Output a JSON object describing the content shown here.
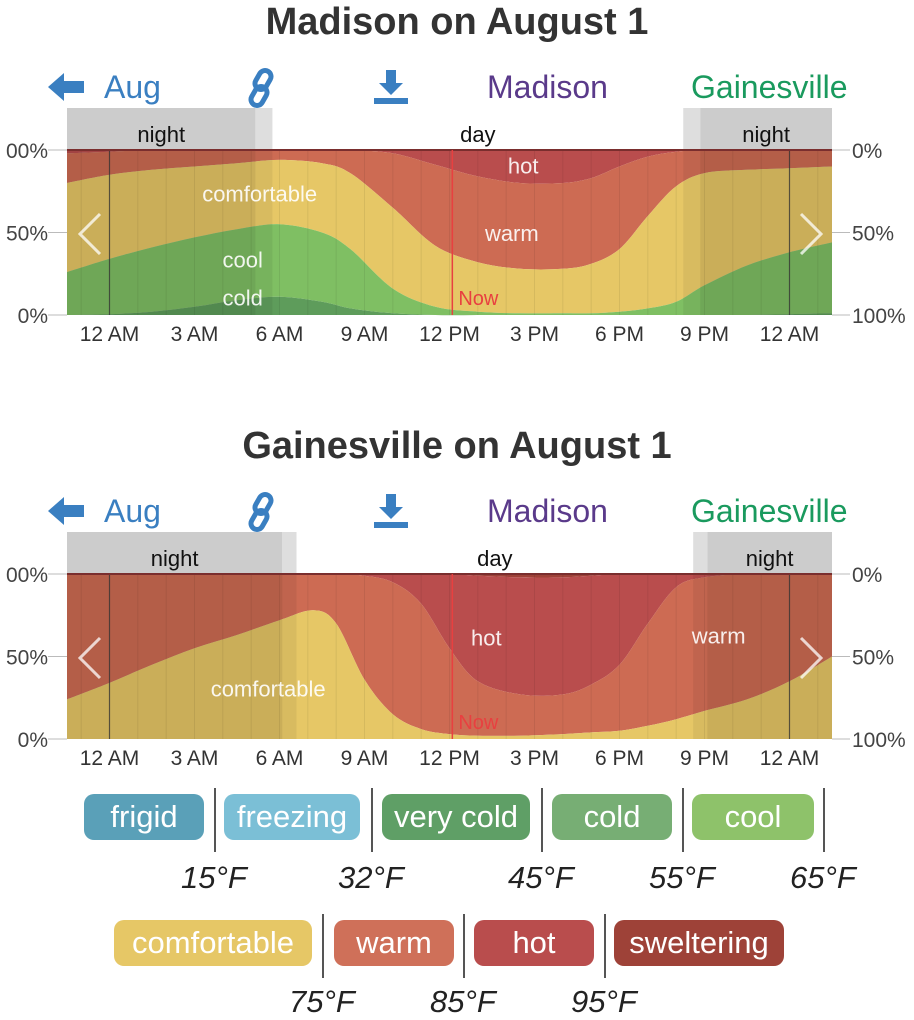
{
  "panels": [
    {
      "title": "Madison on August 1",
      "nav": {
        "back_label": "Aug",
        "city1": "Madison",
        "city2": "Gainesville"
      },
      "bands": {
        "night_left": "night",
        "day": "day",
        "night_right": "night"
      },
      "axis": {
        "left_ticks": [
          "00%",
          "50%",
          "0%"
        ],
        "right_ticks": [
          "0%",
          "50%",
          "100%"
        ],
        "x_ticks": [
          "12 AM",
          "3 AM",
          "6 AM",
          "9 AM",
          "12 PM",
          "3 PM",
          "6 PM",
          "9 PM",
          "12 AM"
        ]
      },
      "now_label": "Now",
      "area_labels": [
        {
          "text": "hot",
          "x_hours": 14.6,
          "y_pct": 90
        },
        {
          "text": "comfortable",
          "x_hours": 5.3,
          "y_pct": 73
        },
        {
          "text": "warm",
          "x_hours": 14.2,
          "y_pct": 49
        },
        {
          "text": "cool",
          "x_hours": 4.7,
          "y_pct": 33
        },
        {
          "text": "cold",
          "x_hours": 4.7,
          "y_pct": 10
        }
      ]
    },
    {
      "title": "Gainesville on August 1",
      "nav": {
        "back_label": "Aug",
        "city1": "Madison",
        "city2": "Gainesville"
      },
      "bands": {
        "night_left": "night",
        "day": "day",
        "night_right": "night"
      },
      "axis": {
        "left_ticks": [
          "00%",
          "50%",
          "0%"
        ],
        "right_ticks": [
          "0%",
          "50%",
          "100%"
        ],
        "x_ticks": [
          "12 AM",
          "3 AM",
          "6 AM",
          "9 AM",
          "12 PM",
          "3 PM",
          "6 PM",
          "9 PM",
          "12 AM"
        ]
      },
      "now_label": "Now",
      "area_labels": [
        {
          "text": "hot",
          "x_hours": 13.3,
          "y_pct": 61
        },
        {
          "text": "warm",
          "x_hours": 21.5,
          "y_pct": 62
        },
        {
          "text": "comfortable",
          "x_hours": 5.6,
          "y_pct": 30
        }
      ]
    }
  ],
  "chart_data": [
    {
      "type": "area",
      "title": "Madison on August 1",
      "x_unit": "hour of day (0 = 12 AM)",
      "x": [
        -1.5,
        0,
        1.5,
        3,
        4.5,
        6,
        7.5,
        8.5,
        10,
        11.5,
        13,
        14.5,
        16,
        17,
        18,
        19,
        20,
        21,
        22.5,
        24,
        25.5
      ],
      "ylim": [
        0,
        100
      ],
      "series": [
        {
          "name": "cold",
          "values": [
            0,
            0.5,
            2,
            5,
            9,
            11,
            8,
            4,
            1,
            0,
            0,
            0,
            0,
            0,
            0,
            0,
            0,
            0,
            0,
            0.5,
            1
          ]
        },
        {
          "name": "cool",
          "values": [
            26,
            34,
            41,
            47,
            52,
            55,
            50,
            40,
            16,
            5,
            2,
            1,
            1,
            1,
            2,
            4,
            8,
            18,
            30,
            38,
            44
          ]
        },
        {
          "name": "comfortable",
          "values": [
            80,
            85,
            88,
            90,
            92,
            94,
            92,
            86,
            65,
            42,
            32,
            28,
            28,
            31,
            40,
            60,
            78,
            86,
            88,
            89,
            90
          ]
        },
        {
          "name": "warm",
          "values": [
            98,
            99,
            100,
            100,
            100,
            100,
            100,
            100,
            98,
            91,
            84,
            80,
            80,
            83,
            90,
            96,
            99,
            100,
            100,
            100,
            100
          ]
        },
        {
          "name": "hot",
          "values": [
            100,
            100,
            100,
            100,
            100,
            100,
            100,
            100,
            100,
            100,
            100,
            100,
            100,
            100,
            100,
            100,
            100,
            100,
            100,
            100,
            100
          ]
        }
      ],
      "now_hour": 12.1,
      "day_start_hour": 5.75,
      "day_end_hour": 20.25,
      "twilight_hours": 0.6
    },
    {
      "type": "area",
      "title": "Gainesville on August 1",
      "x_unit": "hour of day (0 = 12 AM)",
      "x": [
        -1.5,
        0,
        1.5,
        3,
        4.5,
        6,
        7.2,
        8,
        9,
        10,
        11,
        12,
        13,
        14.5,
        16,
        17,
        18,
        19,
        20,
        21,
        22.5,
        24,
        25.5
      ],
      "ylim": [
        0,
        100
      ],
      "series": [
        {
          "name": "comfortable",
          "values": [
            24,
            34,
            45,
            55,
            63,
            72,
            78,
            70,
            36,
            15,
            6,
            3,
            2,
            2,
            3,
            4,
            5,
            8,
            12,
            17,
            24,
            35,
            50
          ]
        },
        {
          "name": "warm",
          "values": [
            100,
            100,
            100,
            100,
            100,
            100,
            100,
            100,
            99,
            95,
            82,
            55,
            35,
            27,
            27,
            33,
            45,
            70,
            92,
            98,
            100,
            100,
            100
          ]
        },
        {
          "name": "hot",
          "values": [
            100,
            100,
            100,
            100,
            100,
            100,
            100,
            100,
            100,
            100,
            100,
            100,
            99,
            98,
            98,
            99,
            100,
            100,
            100,
            100,
            100,
            100,
            100
          ]
        },
        {
          "name": "sweltering",
          "values": [
            100,
            100,
            100,
            100,
            100,
            100,
            100,
            100,
            100,
            100,
            100,
            100,
            100,
            100,
            100,
            100,
            100,
            100,
            100,
            100,
            100,
            100,
            100
          ]
        }
      ],
      "now_hour": 12.1,
      "day_start_hour": 6.6,
      "day_end_hour": 20.6,
      "twilight_hours": 0.5
    }
  ],
  "legend": {
    "row1": [
      {
        "label": "frigid",
        "color": "#5aa0b8"
      },
      {
        "label": "freezing",
        "color": "#7bbfd6"
      },
      {
        "label": "very cold",
        "color": "#5f9f66"
      },
      {
        "label": "cold",
        "color": "#77ae74"
      },
      {
        "label": "cool",
        "color": "#8ec26a"
      }
    ],
    "row1_temps": [
      "15°F",
      "32°F",
      "45°F",
      "55°F",
      "65°F"
    ],
    "row2": [
      {
        "label": "comfortable",
        "color": "#e6c766"
      },
      {
        "label": "warm",
        "color": "#cf7059"
      },
      {
        "label": "hot",
        "color": "#b94d4d"
      },
      {
        "label": "sweltering",
        "color": "#9e4238"
      }
    ],
    "row2_temps": [
      "75°F",
      "85°F",
      "95°F"
    ]
  },
  "colors": {
    "cold": "#5e9c5b",
    "cool": "#7fbf63",
    "comfortable": "#e6c766",
    "warm": "#cd6b53",
    "hot": "#b94d4d",
    "sweltering": "#9e4238",
    "now_line": "#e84040",
    "band": "#cccccc",
    "band_twilight": "#dedede",
    "accent_blue": "#3a7fc1",
    "madison_purple": "#5a3a8a",
    "gainesville_green": "#1a9a5e"
  }
}
